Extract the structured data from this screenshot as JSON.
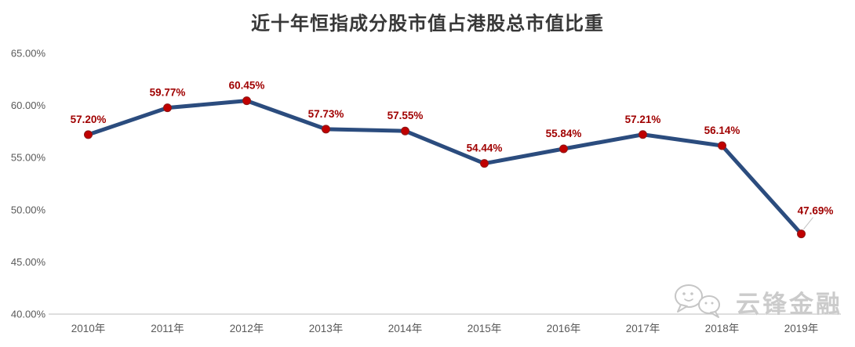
{
  "title": "近十年恒指成分股市值占港股总市值比重",
  "watermark": {
    "brand": "云锋金融",
    "icon": "wechat-chat-bubbles-icon"
  },
  "chart_data": {
    "type": "line",
    "title": "近十年恒指成分股市值占港股总市值比重",
    "categories": [
      "2010年",
      "2011年",
      "2012年",
      "2013年",
      "2014年",
      "2015年",
      "2016年",
      "2017年",
      "2018年",
      "2019年"
    ],
    "values": [
      57.2,
      59.77,
      60.45,
      57.73,
      57.55,
      54.44,
      55.84,
      57.21,
      56.14,
      47.69
    ],
    "data_labels": [
      "57.20%",
      "59.77%",
      "60.45%",
      "57.73%",
      "57.55%",
      "54.44%",
      "55.84%",
      "57.21%",
      "56.14%",
      "47.69%"
    ],
    "xlabel": "",
    "ylabel": "",
    "ylim": [
      40,
      65
    ],
    "ytick_labels": [
      "40.00%",
      "45.00%",
      "50.00%",
      "55.00%",
      "60.00%",
      "65.00%"
    ],
    "grid": false,
    "legend": "none",
    "colors": {
      "line": "#2b4c7e",
      "marker_fill": "#c00000",
      "marker_stroke": "#8b1a1a",
      "data_label": "#a00000",
      "tick_label": "#595959",
      "axis_line": "#c9c9c9",
      "leader_line": "#c0c0c0"
    }
  }
}
